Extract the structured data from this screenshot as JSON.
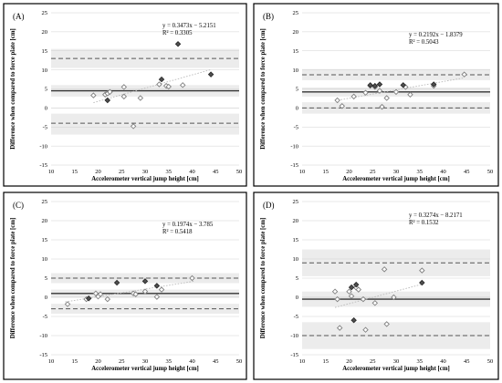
{
  "chart_data": [
    {
      "type": "scatter",
      "panel_label": "(A)",
      "xlabel": "Accelerometer vertical jump height [cm]",
      "ylabel": "Difference when compared to force plate [cm]",
      "xlim": [
        10,
        50
      ],
      "ylim": [
        -15,
        25
      ],
      "x_ticks": [
        10,
        15,
        20,
        25,
        30,
        35,
        40,
        45,
        50
      ],
      "y_ticks": [
        -15,
        -10,
        -5,
        0,
        5,
        10,
        15,
        20,
        25
      ],
      "equation": "y = 0.3473x − 5.2151",
      "r_squared": "R² = 0.3305",
      "mean_bias": 4.5,
      "upper_loa": 13,
      "lower_loa": -4,
      "upper_ci": [
        10.5,
        15.5
      ],
      "mean_ci": [
        3,
        6
      ],
      "lower_ci": [
        -7,
        -1.5
      ],
      "trend": {
        "slope": 0.3473,
        "intercept": -5.2151,
        "x_range": [
          19,
          44
        ]
      },
      "series": [
        {
          "marker": "open",
          "points": [
            [
              19,
              3.3
            ],
            [
              21.5,
              3.5
            ],
            [
              22,
              3.8
            ],
            [
              22.5,
              4.2
            ],
            [
              25.5,
              3
            ],
            [
              25.5,
              5.5
            ],
            [
              27.5,
              -4.8
            ],
            [
              29,
              2.6
            ],
            [
              33,
              6.2
            ],
            [
              34.5,
              5.8
            ],
            [
              35,
              5.6
            ],
            [
              38,
              6
            ]
          ]
        },
        {
          "marker": "filled",
          "points": [
            [
              22,
              2
            ],
            [
              33.5,
              7.5
            ],
            [
              37,
              16.8
            ],
            [
              44,
              8.8
            ]
          ]
        }
      ]
    },
    {
      "type": "scatter",
      "panel_label": "(B)",
      "xlabel": "Accelerometer vertical jump height [cm]",
      "ylabel": "Difference when compared to force plate [cm]",
      "xlim": [
        10,
        50
      ],
      "ylim": [
        -15,
        25
      ],
      "x_ticks": [
        10,
        15,
        20,
        25,
        30,
        35,
        40,
        45,
        50
      ],
      "y_ticks": [
        -15,
        -10,
        -5,
        0,
        5,
        10,
        15,
        20,
        25
      ],
      "equation": "y = 0.2192x − 1.8379",
      "r_squared": "R² = 0.5043",
      "mean_bias": 4.2,
      "upper_loa": 8.7,
      "lower_loa": 0,
      "upper_ci": [
        7.3,
        10.2
      ],
      "mean_ci": [
        3,
        5.4
      ],
      "lower_ci": [
        -1.5,
        1.5
      ],
      "trend": {
        "slope": 0.2192,
        "intercept": -1.8379,
        "x_range": [
          17,
          44.5
        ]
      },
      "series": [
        {
          "marker": "open",
          "points": [
            [
              17.5,
              2
            ],
            [
              18.5,
              0.5
            ],
            [
              21,
              3
            ],
            [
              23.5,
              4
            ],
            [
              24.5,
              5.8
            ],
            [
              25.5,
              5.5
            ],
            [
              26.5,
              4.5
            ],
            [
              27,
              0.3
            ],
            [
              28,
              2.6
            ],
            [
              30,
              4.2
            ],
            [
              32,
              5.5
            ],
            [
              33,
              3.5
            ],
            [
              38,
              5.8
            ],
            [
              44.5,
              8.8
            ]
          ]
        },
        {
          "marker": "filled",
          "points": [
            [
              24.5,
              6
            ],
            [
              25.5,
              5.8
            ],
            [
              26.5,
              6.2
            ],
            [
              31.5,
              6
            ],
            [
              38,
              6.2
            ]
          ]
        }
      ]
    },
    {
      "type": "scatter",
      "panel_label": "(C)",
      "xlabel": "Accelerometer vertical jump height [cm]",
      "ylabel": "Difference when compared to force plate [cm]",
      "xlim": [
        10,
        50
      ],
      "ylim": [
        -15,
        25
      ],
      "x_ticks": [
        10,
        15,
        20,
        25,
        30,
        35,
        40,
        45,
        50
      ],
      "y_ticks": [
        -15,
        -10,
        -5,
        0,
        5,
        10,
        15,
        20,
        25
      ],
      "equation": "y = 0.1974x − 3.785",
      "r_squared": "R² = 0.5418",
      "mean_bias": 1,
      "upper_loa": 5,
      "lower_loa": -3,
      "upper_ci": [
        3.7,
        6.3
      ],
      "mean_ci": [
        0,
        2
      ],
      "lower_ci": [
        -4.3,
        -1.7
      ],
      "trend": {
        "slope": 0.1974,
        "intercept": -3.785,
        "x_range": [
          13,
          40.5
        ]
      },
      "series": [
        {
          "marker": "open",
          "points": [
            [
              13.5,
              -1.8
            ],
            [
              17.5,
              -0.5
            ],
            [
              19.5,
              1
            ],
            [
              20,
              0.2
            ],
            [
              20.5,
              0.8
            ],
            [
              22,
              -0.5
            ],
            [
              27.5,
              1
            ],
            [
              28,
              0.8
            ],
            [
              30,
              1.5
            ],
            [
              32.5,
              0.1
            ],
            [
              33.5,
              2
            ],
            [
              40,
              5
            ]
          ]
        },
        {
          "marker": "filled",
          "points": [
            [
              18,
              -0.3
            ],
            [
              24,
              3.8
            ],
            [
              30,
              4.2
            ],
            [
              32.5,
              3
            ]
          ]
        }
      ]
    },
    {
      "type": "scatter",
      "panel_label": "(D)",
      "xlabel": "Accelerometer vertical jump height [cm]",
      "ylabel": "Difference when compared to force plate [cm]",
      "xlim": [
        10,
        50
      ],
      "ylim": [
        -15,
        25
      ],
      "x_ticks": [
        10,
        15,
        20,
        25,
        30,
        35,
        40,
        45,
        50
      ],
      "y_ticks": [
        -15,
        -10,
        -5,
        0,
        5,
        10,
        15,
        20,
        25
      ],
      "equation": "y = 0.3274x − 8.2171",
      "r_squared": "R² = 0.1532",
      "mean_bias": -0.5,
      "upper_loa": 9,
      "lower_loa": -10,
      "upper_ci": [
        5.5,
        12.5
      ],
      "mean_ci": [
        -2.5,
        1.5
      ],
      "lower_ci": [
        -13.5,
        -6.5
      ],
      "trend": {
        "slope": 0.3274,
        "intercept": -8.2171,
        "x_range": [
          17,
          36
        ]
      },
      "series": [
        {
          "marker": "open",
          "points": [
            [
              17,
              1.5
            ],
            [
              17.5,
              -0.5
            ],
            [
              18,
              -8
            ],
            [
              20,
              1.5
            ],
            [
              20.5,
              0.3
            ],
            [
              21.5,
              2.5
            ],
            [
              22,
              2
            ],
            [
              23,
              -0.5
            ],
            [
              23.5,
              -8.5
            ],
            [
              25.5,
              -1.5
            ],
            [
              27.5,
              7.3
            ],
            [
              28,
              -7
            ],
            [
              29.5,
              0
            ],
            [
              35.5,
              7
            ]
          ]
        },
        {
          "marker": "filled",
          "points": [
            [
              20.5,
              2.6
            ],
            [
              21,
              -6
            ],
            [
              21.5,
              3.3
            ],
            [
              35.5,
              3.8
            ]
          ]
        }
      ]
    }
  ]
}
